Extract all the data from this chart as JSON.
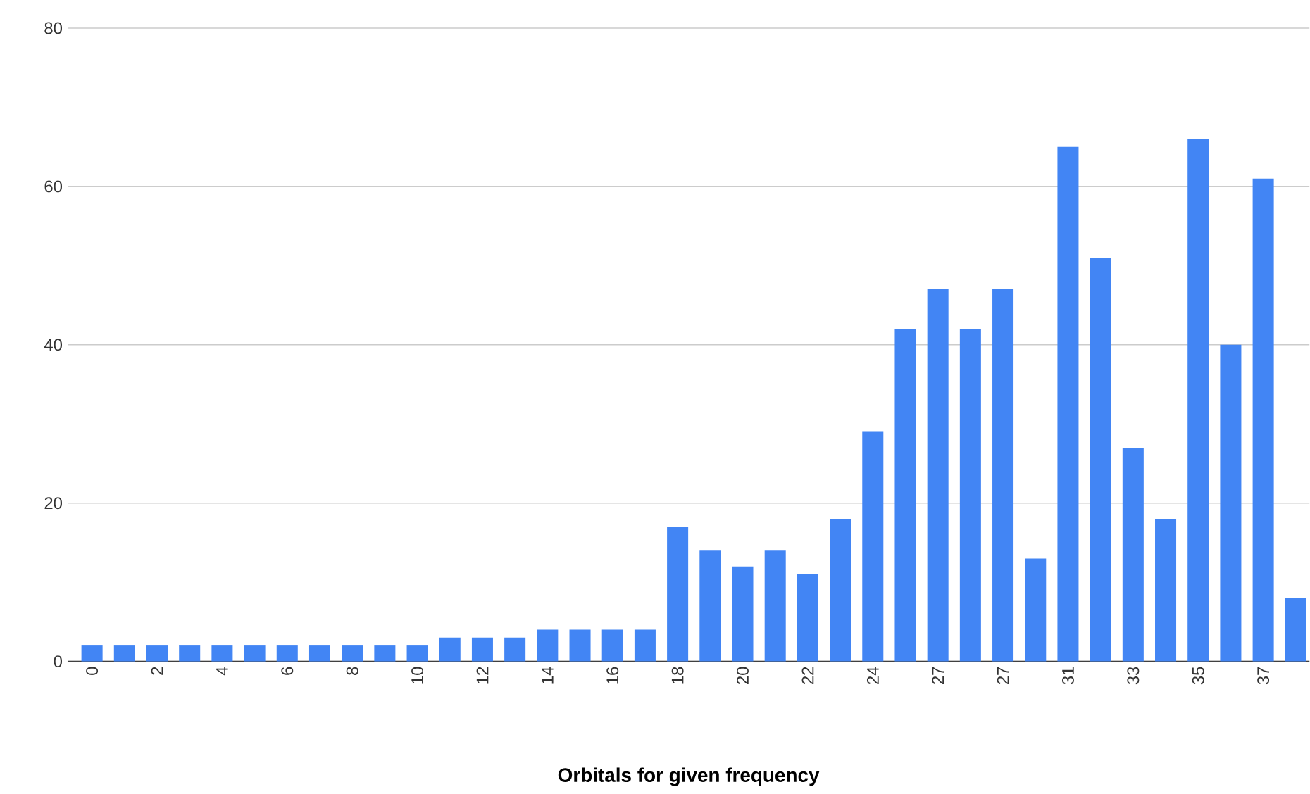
{
  "chart_data": {
    "type": "bar",
    "xlabel": "Orbitals for given frequency",
    "categories": [
      "0",
      null,
      "2",
      null,
      "4",
      null,
      "6",
      null,
      "8",
      null,
      "10",
      null,
      "12",
      null,
      "14",
      null,
      "16",
      null,
      "18",
      null,
      "20",
      null,
      "22",
      null,
      "24",
      null,
      "27",
      null,
      "27",
      null,
      "31",
      null,
      "33",
      null,
      "35",
      null,
      "37",
      null
    ],
    "values": [
      2,
      2,
      2,
      2,
      2,
      2,
      2,
      2,
      2,
      2,
      2,
      3,
      3,
      3,
      4,
      4,
      4,
      4,
      17,
      14,
      12,
      14,
      11,
      18,
      29,
      42,
      47,
      42,
      47,
      13,
      65,
      51,
      27,
      18,
      66,
      40,
      61,
      8
    ],
    "color": "#4285f4",
    "ylim": [
      0,
      80
    ],
    "yticks": [
      0,
      20,
      40,
      60,
      80
    ],
    "grid": "y"
  }
}
